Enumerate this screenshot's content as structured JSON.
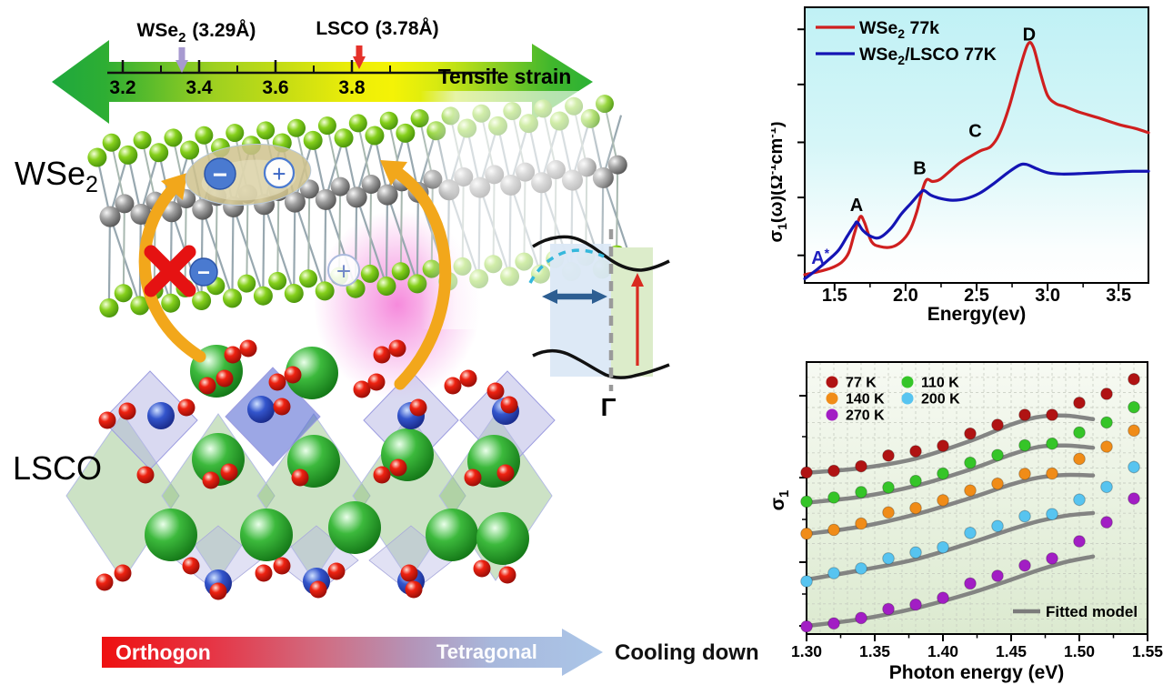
{
  "colors": {
    "red_curve": "#cf1f1f",
    "blue_curve": "#1414b4",
    "chart1_bg_top": "#c0f1f5",
    "chart2_bg_bottom": "#dcead0",
    "fit_line": "#7b7b7b",
    "accent_orange": "#f2a71b",
    "glow_pink": "#f03cc4",
    "strain_yellow": "#f4f306",
    "strain_green": "#2bb135",
    "phase_red": "#ee1010",
    "phase_blue": "#abc6e8"
  },
  "schematic": {
    "strain": {
      "material1_pre": "WSe",
      "material1_sub": "2",
      "material1_value": "(3.29Å)",
      "material2": "LSCO",
      "material2_value": "(3.78Å)",
      "ticks": [
        "3.2",
        "3.4",
        "3.6",
        "3.8"
      ],
      "label": "Tensile strain"
    },
    "layer_top": {
      "pre": "WSe",
      "sub": "2"
    },
    "layer_bottom": "LSCO",
    "charges": {
      "minus": "−",
      "plus": "+"
    },
    "band": {
      "gamma": "Γ"
    },
    "phase": {
      "left": "Orthogon",
      "right": "Tetragonal",
      "caption": "Cooling down"
    }
  },
  "chart_data": [
    {
      "type": "line",
      "title": "",
      "xlabel": "Energy(ev)",
      "ylabel": "σ1(ω)(Ω-1cm-1)",
      "ylabel_parts": {
        "base": "σ",
        "sub": "1",
        "mid": "(ω)(Ω",
        "sup1": "-1",
        "mid2": "cm",
        "sup2": "-1",
        "end": ")"
      },
      "xlim": [
        1.29,
        3.71
      ],
      "ylim": [
        0,
        100
      ],
      "xticks": [
        1.5,
        2.0,
        2.5,
        3.0,
        3.5
      ],
      "xtick_labels": [
        "1.5",
        "2.0",
        "2.5",
        "3.0",
        "3.5"
      ],
      "yticks_unlabeled": [
        10,
        31,
        51,
        72,
        92
      ],
      "legend_position": "top-left",
      "grid": false,
      "bg_gradient": [
        "#c0f1f5",
        "#ffffff"
      ],
      "series": [
        {
          "name": "WSe2 77k",
          "name_parts": {
            "pre": "WSe",
            "sub": "2",
            "post": " 77k"
          },
          "color": "#cf1f1f",
          "points": [
            [
              1.29,
              3
            ],
            [
              1.38,
              4
            ],
            [
              1.48,
              5.5
            ],
            [
              1.55,
              7.5
            ],
            [
              1.6,
              11
            ],
            [
              1.64,
              18
            ],
            [
              1.68,
              24
            ],
            [
              1.71,
              22
            ],
            [
              1.76,
              15
            ],
            [
              1.82,
              13.2
            ],
            [
              1.9,
              13
            ],
            [
              1.97,
              15
            ],
            [
              2.03,
              19
            ],
            [
              2.08,
              26
            ],
            [
              2.12,
              34
            ],
            [
              2.15,
              37.5
            ],
            [
              2.19,
              36.8
            ],
            [
              2.24,
              37.5
            ],
            [
              2.3,
              40
            ],
            [
              2.38,
              43.5
            ],
            [
              2.46,
              46
            ],
            [
              2.53,
              48
            ],
            [
              2.6,
              49.5
            ],
            [
              2.66,
              54
            ],
            [
              2.73,
              64
            ],
            [
              2.8,
              77
            ],
            [
              2.86,
              86.5
            ],
            [
              2.9,
              85.5
            ],
            [
              2.95,
              76
            ],
            [
              3.0,
              68
            ],
            [
              3.06,
              65
            ],
            [
              3.12,
              64
            ],
            [
              3.22,
              62
            ],
            [
              3.35,
              60
            ],
            [
              3.5,
              57.5
            ],
            [
              3.62,
              56
            ],
            [
              3.71,
              54.5
            ]
          ]
        },
        {
          "name": "WSe2/LSCO 77K",
          "name_parts": {
            "pre": "WSe",
            "sub": "2",
            "post": "/LSCO 77K"
          },
          "color": "#1414b4",
          "points": [
            [
              1.29,
              1.5
            ],
            [
              1.38,
              5
            ],
            [
              1.46,
              8.5
            ],
            [
              1.53,
              12
            ],
            [
              1.59,
              17
            ],
            [
              1.64,
              21
            ],
            [
              1.66,
              22
            ],
            [
              1.7,
              19
            ],
            [
              1.76,
              16.8
            ],
            [
              1.82,
              16.5
            ],
            [
              1.9,
              20
            ],
            [
              1.97,
              25
            ],
            [
              2.04,
              29
            ],
            [
              2.1,
              32.5
            ],
            [
              2.13,
              33.5
            ],
            [
              2.18,
              31.8
            ],
            [
              2.25,
              30.6
            ],
            [
              2.33,
              30
            ],
            [
              2.42,
              30.5
            ],
            [
              2.52,
              32.5
            ],
            [
              2.62,
              36
            ],
            [
              2.72,
              40
            ],
            [
              2.8,
              42.7
            ],
            [
              2.85,
              43
            ],
            [
              2.92,
              41.5
            ],
            [
              3.0,
              40
            ],
            [
              3.1,
              39.5
            ],
            [
              3.25,
              39.7
            ],
            [
              3.45,
              40.2
            ],
            [
              3.6,
              40.5
            ],
            [
              3.71,
              40.5
            ]
          ]
        }
      ],
      "annotations": [
        {
          "text": "A",
          "sup": "*",
          "x": 1.4,
          "y": 7,
          "color": "#1f1fbf"
        },
        {
          "text": "A",
          "x": 1.655,
          "y": 26,
          "color": "#000000"
        },
        {
          "text": "B",
          "x": 2.1,
          "y": 39.5,
          "color": "#000000"
        },
        {
          "text": "C",
          "x": 2.49,
          "y": 53,
          "color": "#000000"
        },
        {
          "text": "D",
          "x": 2.87,
          "y": 88,
          "color": "#000000"
        }
      ]
    },
    {
      "type": "scatter",
      "title": "",
      "xlabel": "Photon energy (eV)",
      "ylabel": "σ1",
      "ylabel_parts": {
        "base": "σ",
        "sub": "1"
      },
      "xlim": [
        1.3,
        1.55
      ],
      "ylim": [
        0,
        100
      ],
      "xticks": [
        1.3,
        1.35,
        1.4,
        1.45,
        1.5,
        1.55
      ],
      "xtick_labels": [
        "1.30",
        "1.35",
        "1.40",
        "1.45",
        "1.50",
        "1.55"
      ],
      "grid": "dashed",
      "bg_gradient": [
        "#f7faf3",
        "#dcead0"
      ],
      "x": [
        1.3,
        1.32,
        1.34,
        1.36,
        1.38,
        1.4,
        1.42,
        1.44,
        1.46,
        1.48,
        1.5,
        1.52,
        1.54
      ],
      "series": [
        {
          "name": "77 K",
          "color": "#b01313",
          "values": [
            59.4,
            60,
            61.7,
            65.6,
            67.2,
            69.2,
            73.7,
            76.9,
            80.6,
            80.6,
            85,
            88.3,
            93.7
          ],
          "fit": [
            [
              1.3,
              59.3
            ],
            [
              1.34,
              61
            ],
            [
              1.38,
              64.5
            ],
            [
              1.42,
              71
            ],
            [
              1.45,
              77
            ],
            [
              1.47,
              79.8
            ],
            [
              1.49,
              80.3
            ],
            [
              1.51,
              79
            ]
          ]
        },
        {
          "name": "110 K",
          "color": "#35c528",
          "values": [
            48.7,
            50.2,
            52.2,
            53.9,
            56.3,
            59,
            63,
            65.8,
            69.4,
            70,
            74.1,
            77.8,
            83.4
          ],
          "fit": [
            [
              1.3,
              48.3
            ],
            [
              1.34,
              50.5
            ],
            [
              1.38,
              54.5
            ],
            [
              1.42,
              60.5
            ],
            [
              1.45,
              66
            ],
            [
              1.47,
              68.8
            ],
            [
              1.49,
              69.3
            ],
            [
              1.51,
              68.5
            ]
          ]
        },
        {
          "name": "140 K",
          "color": "#f08c18",
          "values": [
            36.9,
            38.3,
            40.6,
            44.7,
            46.3,
            49.2,
            52.8,
            55.3,
            58.9,
            59,
            64.4,
            68.9,
            74.8
          ],
          "fit": [
            [
              1.3,
              36.8
            ],
            [
              1.34,
              39.5
            ],
            [
              1.38,
              44
            ],
            [
              1.42,
              50
            ],
            [
              1.45,
              55
            ],
            [
              1.47,
              57.5
            ],
            [
              1.49,
              58.5
            ],
            [
              1.51,
              58.3
            ]
          ]
        },
        {
          "name": "200 K",
          "color": "#57c4f0",
          "values": [
            19.4,
            22.4,
            24.1,
            27.8,
            30,
            31.9,
            37.2,
            39.7,
            43.3,
            44.1,
            49.4,
            54.1,
            61.4
          ],
          "fit": [
            [
              1.3,
              20
            ],
            [
              1.34,
              23.5
            ],
            [
              1.38,
              27.5
            ],
            [
              1.42,
              33.5
            ],
            [
              1.45,
              38.5
            ],
            [
              1.47,
              41.5
            ],
            [
              1.49,
              43.5
            ],
            [
              1.51,
              44.5
            ]
          ]
        },
        {
          "name": "270 K",
          "color": "#a21ec4",
          "values": [
            2.8,
            3.9,
            5.9,
            9.2,
            10.8,
            13.3,
            18.6,
            21.4,
            25.2,
            27.8,
            34.1,
            41.1,
            49.8
          ],
          "fit": [
            [
              1.3,
              3
            ],
            [
              1.34,
              5.5
            ],
            [
              1.38,
              9.5
            ],
            [
              1.42,
              15
            ],
            [
              1.45,
              20
            ],
            [
              1.47,
              23.5
            ],
            [
              1.49,
              26.5
            ],
            [
              1.51,
              28.5
            ]
          ]
        }
      ],
      "fit_label": "Fitted model",
      "fit_color": "#7b7b7b"
    }
  ]
}
